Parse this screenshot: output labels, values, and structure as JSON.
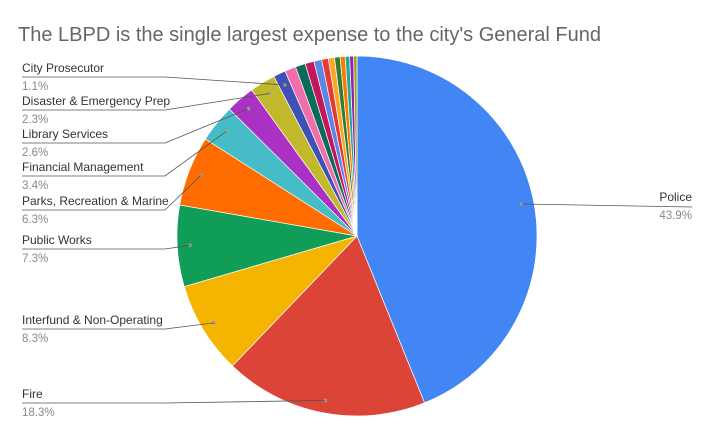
{
  "chart_data": {
    "type": "pie",
    "title": "The LBPD is the single largest expense to the city's General Fund",
    "start_angle_deg": 0,
    "direction": "clockwise",
    "slices": [
      {
        "label": "Police",
        "value": 43.9,
        "pct_label": "43.9%",
        "color": "#4285F4"
      },
      {
        "label": "Fire",
        "value": 18.3,
        "pct_label": "18.3%",
        "color": "#DB4437"
      },
      {
        "label": "Interfund & Non-Operating",
        "value": 8.3,
        "pct_label": "8.3%",
        "color": "#F4B400"
      },
      {
        "label": "Public Works",
        "value": 7.3,
        "pct_label": "7.3%",
        "color": "#0F9D58"
      },
      {
        "label": "Parks, Recreation & Marine",
        "value": 6.3,
        "pct_label": "6.3%",
        "color": "#FF6D01"
      },
      {
        "label": "Financial Management",
        "value": 3.4,
        "pct_label": "3.4%",
        "color": "#46BDC6"
      },
      {
        "label": "Library Services",
        "value": 2.6,
        "pct_label": "2.6%",
        "color": "#AB30C4"
      },
      {
        "label": "Disaster & Emergency Prep",
        "value": 2.3,
        "pct_label": "2.3%",
        "color": "#C2B82B"
      },
      {
        "label": "City Prosecutor",
        "value": 1.1,
        "pct_label": "1.1%",
        "color": "#3F51B5"
      },
      {
        "label": "",
        "value": 1.0,
        "color": "#F06EAA"
      },
      {
        "label": "",
        "value": 0.9,
        "color": "#0B6B5D"
      },
      {
        "label": "",
        "value": 0.8,
        "color": "#C2185B"
      },
      {
        "label": "",
        "value": 0.7,
        "color": "#5C85E6"
      },
      {
        "label": "",
        "value": 0.6,
        "color": "#E53935"
      },
      {
        "label": "",
        "value": 0.55,
        "color": "#F9A825"
      },
      {
        "label": "",
        "value": 0.5,
        "color": "#2E7D32"
      },
      {
        "label": "",
        "value": 0.45,
        "color": "#F57C00"
      },
      {
        "label": "",
        "value": 0.4,
        "color": "#26A69A"
      },
      {
        "label": "",
        "value": 0.35,
        "color": "#8E24AA"
      },
      {
        "label": "",
        "value": 0.3,
        "color": "#9E9D24"
      }
    ]
  }
}
